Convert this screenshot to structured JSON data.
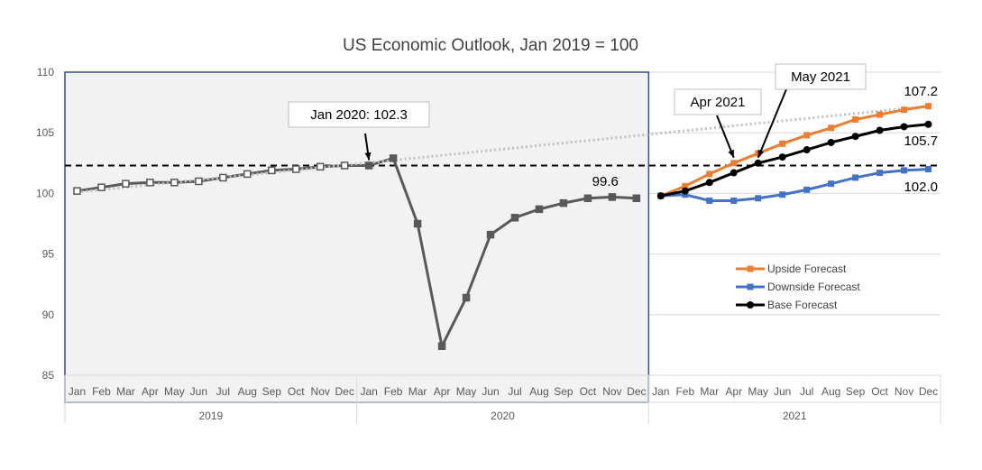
{
  "chart_data": {
    "type": "line",
    "title": "US Economic Outlook, Jan 2019 = 100",
    "ylim": [
      85,
      110
    ],
    "yticks": [
      85,
      90,
      95,
      100,
      105,
      110
    ],
    "months": [
      "Jan",
      "Feb",
      "Mar",
      "Apr",
      "May",
      "Jun",
      "Jul",
      "Aug",
      "Sep",
      "Oct",
      "Nov",
      "Dec",
      "Jan",
      "Feb",
      "Mar",
      "Apr",
      "May",
      "Jun",
      "Jul",
      "Aug",
      "Sep",
      "Oct",
      "Nov",
      "Dec",
      "Jan",
      "Feb",
      "Mar",
      "Apr",
      "May",
      "Jun",
      "Jul",
      "Aug",
      "Sep",
      "Oct",
      "Nov",
      "Dec"
    ],
    "years": [
      "2019",
      "2020",
      "2021"
    ],
    "grid": "horizontal",
    "legend_position": "right-center",
    "series": [
      {
        "id": "actual",
        "values": [
          100.2,
          100.5,
          100.8,
          100.9,
          100.9,
          101.0,
          101.3,
          101.6,
          101.9,
          102.0,
          102.2,
          102.3,
          102.3,
          102.9,
          97.5,
          87.4,
          91.4,
          96.6,
          98.0,
          98.7,
          99.2,
          99.6,
          99.7,
          99.6
        ],
        "start_index": 0,
        "color": "#595959"
      },
      {
        "id": "trend",
        "from": [
          0,
          100.1
        ],
        "to": [
          35,
          107.2
        ],
        "color": "#bfbfbf",
        "style": "dotted"
      },
      {
        "name": "Upside Forecast",
        "values": [
          99.8,
          100.6,
          101.6,
          102.5,
          103.3,
          104.1,
          104.8,
          105.4,
          106.1,
          106.5,
          106.9,
          107.2
        ],
        "start_index": 24,
        "color": "#ed7d31"
      },
      {
        "name": "Downside Forecast",
        "values": [
          99.8,
          99.9,
          99.4,
          99.4,
          99.6,
          99.9,
          100.3,
          100.8,
          101.3,
          101.7,
          101.9,
          102.0
        ],
        "start_index": 24,
        "color": "#4472c4"
      },
      {
        "name": "Base Forecast",
        "values": [
          99.8,
          100.2,
          100.9,
          101.7,
          102.5,
          103.0,
          103.6,
          104.2,
          104.7,
          105.2,
          105.5,
          105.7
        ],
        "start_index": 24,
        "color": "#000000"
      }
    ],
    "reference_line": {
      "value": 102.3,
      "color": "#000000",
      "style": "dashed"
    },
    "annotations": [
      {
        "text": "Jan 2020: 102.3",
        "target_index": 12,
        "target_value": 102.3
      },
      {
        "text": "Apr 2021",
        "target_index": 27,
        "target_value": 102.5
      },
      {
        "text": "May 2021",
        "target_index": 28,
        "target_value": 102.5
      }
    ],
    "data_labels": [
      {
        "text": "99.6",
        "index": 23
      },
      {
        "text": "107.2",
        "index": 35
      },
      {
        "text": "105.7",
        "index": 35
      },
      {
        "text": "102.0",
        "index": 35
      }
    ]
  }
}
